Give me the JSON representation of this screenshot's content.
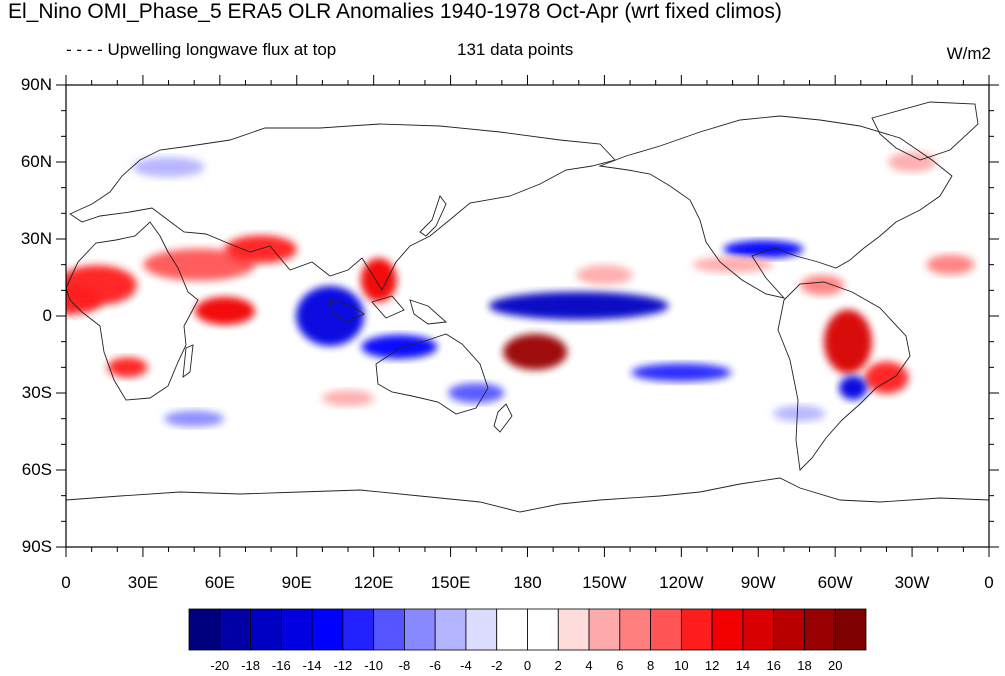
{
  "header": {
    "title": "El_Nino OMI_Phase_5 ERA5 OLR Anomalies 1940-1978 Oct-Apr (wrt fixed climos)",
    "left_string": "- - - - Upwelling longwave flux at top",
    "center_string": "131 data points",
    "units": "W/m2"
  },
  "map": {
    "projection": "cylindrical-equidistant",
    "lon_range": [
      0,
      360
    ],
    "lat_range": [
      -90,
      90
    ],
    "lat_tick_labels": [
      "90N",
      "60N",
      "30N",
      "0",
      "30S",
      "60S",
      "90S"
    ],
    "lon_tick_labels": [
      "0",
      "30E",
      "60E",
      "90E",
      "120E",
      "150E",
      "180",
      "150W",
      "120W",
      "90W",
      "60W",
      "30W",
      "0"
    ],
    "anomaly_features": [
      {
        "label": "strong negative OLR, western Pacific / Maritime Continent",
        "sign": "negative"
      },
      {
        "label": "strong negative OLR, equatorial central Pacific",
        "sign": "negative"
      },
      {
        "label": "strong positive OLR, South Pacific near 180",
        "sign": "positive"
      },
      {
        "label": "strong positive OLR, Brazil",
        "sign": "positive"
      },
      {
        "label": "positive OLR, tropical Africa",
        "sign": "positive"
      },
      {
        "label": "positive OLR, Arabian Sea / South Asia",
        "sign": "positive"
      },
      {
        "label": "negative OLR, Gulf of Mexico",
        "sign": "negative"
      },
      {
        "label": "negative OLR, subtropical South America",
        "sign": "negative"
      }
    ]
  },
  "colorbar": {
    "labels": [
      "-20",
      "-18",
      "-16",
      "-14",
      "-12",
      "-10",
      "-8",
      "-6",
      "-4",
      "-2",
      "0",
      "2",
      "4",
      "6",
      "8",
      "10",
      "12",
      "14",
      "16",
      "18",
      "20"
    ],
    "colors": [
      "#00007f",
      "#0000a4",
      "#0000c2",
      "#0000e0",
      "#0000ff",
      "#2222ff",
      "#5555ff",
      "#8888ff",
      "#b3b3ff",
      "#dcdcff",
      "#ffffff",
      "#ffffff",
      "#ffdcdc",
      "#ffaaaa",
      "#ff7f7f",
      "#ff5555",
      "#ff1e1e",
      "#f20000",
      "#d80000",
      "#b80000",
      "#990000",
      "#7f0000"
    ]
  }
}
